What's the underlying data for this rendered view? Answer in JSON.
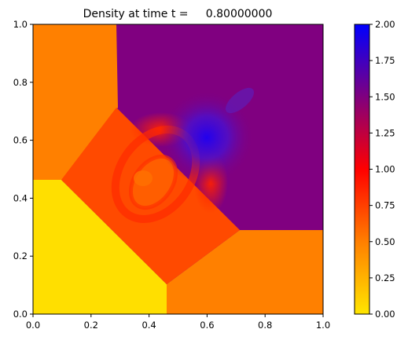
{
  "chart_data": {
    "type": "heatmap",
    "title": "Density at time t =     0.80000000",
    "xlabel": "",
    "ylabel": "",
    "xlim": [
      0,
      1
    ],
    "ylim": [
      0,
      1
    ],
    "x_ticks": [
      "0.0",
      "0.2",
      "0.4",
      "0.6",
      "0.8",
      "1.0"
    ],
    "y_ticks": [
      "0.0",
      "0.2",
      "0.4",
      "0.6",
      "0.8",
      "1.0"
    ],
    "grid": false,
    "colorbar": {
      "range": [
        0,
        2
      ],
      "ticks": [
        "0.00",
        "0.25",
        "0.50",
        "0.75",
        "1.00",
        "1.25",
        "1.50",
        "1.75",
        "2.00"
      ],
      "colors": [
        "#ffe600",
        "#ff7f00",
        "#ff0000",
        "#7f007f",
        "#0000ff"
      ]
    },
    "field": {
      "regions": [
        {
          "name": "lower-left",
          "value": 0.08,
          "color": "#ffdf00"
        },
        {
          "name": "upper-left",
          "value": 0.5,
          "color": "#ff8000"
        },
        {
          "name": "lower-right",
          "value": 0.52,
          "color": "#ff8000"
        },
        {
          "name": "upper-right",
          "value": 1.5,
          "color": "#800080"
        },
        {
          "name": "center-diamond",
          "value": 0.75,
          "color": "#ff4a00"
        },
        {
          "name": "dense-spot",
          "value": 1.75,
          "x": 0.6,
          "y": 0.6,
          "color": "#2a00e0"
        }
      ]
    }
  }
}
